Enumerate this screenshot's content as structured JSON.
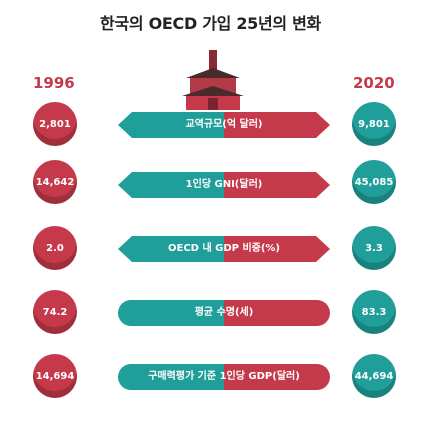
{
  "title": "한국의 OECD 가입 25년의 변화",
  "year_left": "1996",
  "year_right": "2020",
  "rows": [
    {
      "label": "교역규모(억 달러)",
      "left": "2,801",
      "right": "9,801"
    },
    {
      "label": "1인당 GNI(달러)",
      "left": "14,642",
      "right": "45,085"
    },
    {
      "label": "OECD 내 GDP 비중(%)",
      "left": "2.0",
      "right": "3.3"
    },
    {
      "label": "평균 수명(세)",
      "left": "74.2",
      "right": "83.3"
    },
    {
      "label": "구매력평가 기준 1인당 GDP(달러)",
      "left": "14,694",
      "right": "44,694"
    }
  ],
  "colors": {
    "red": "#c43a4a",
    "teal": "#1f9e9a"
  }
}
